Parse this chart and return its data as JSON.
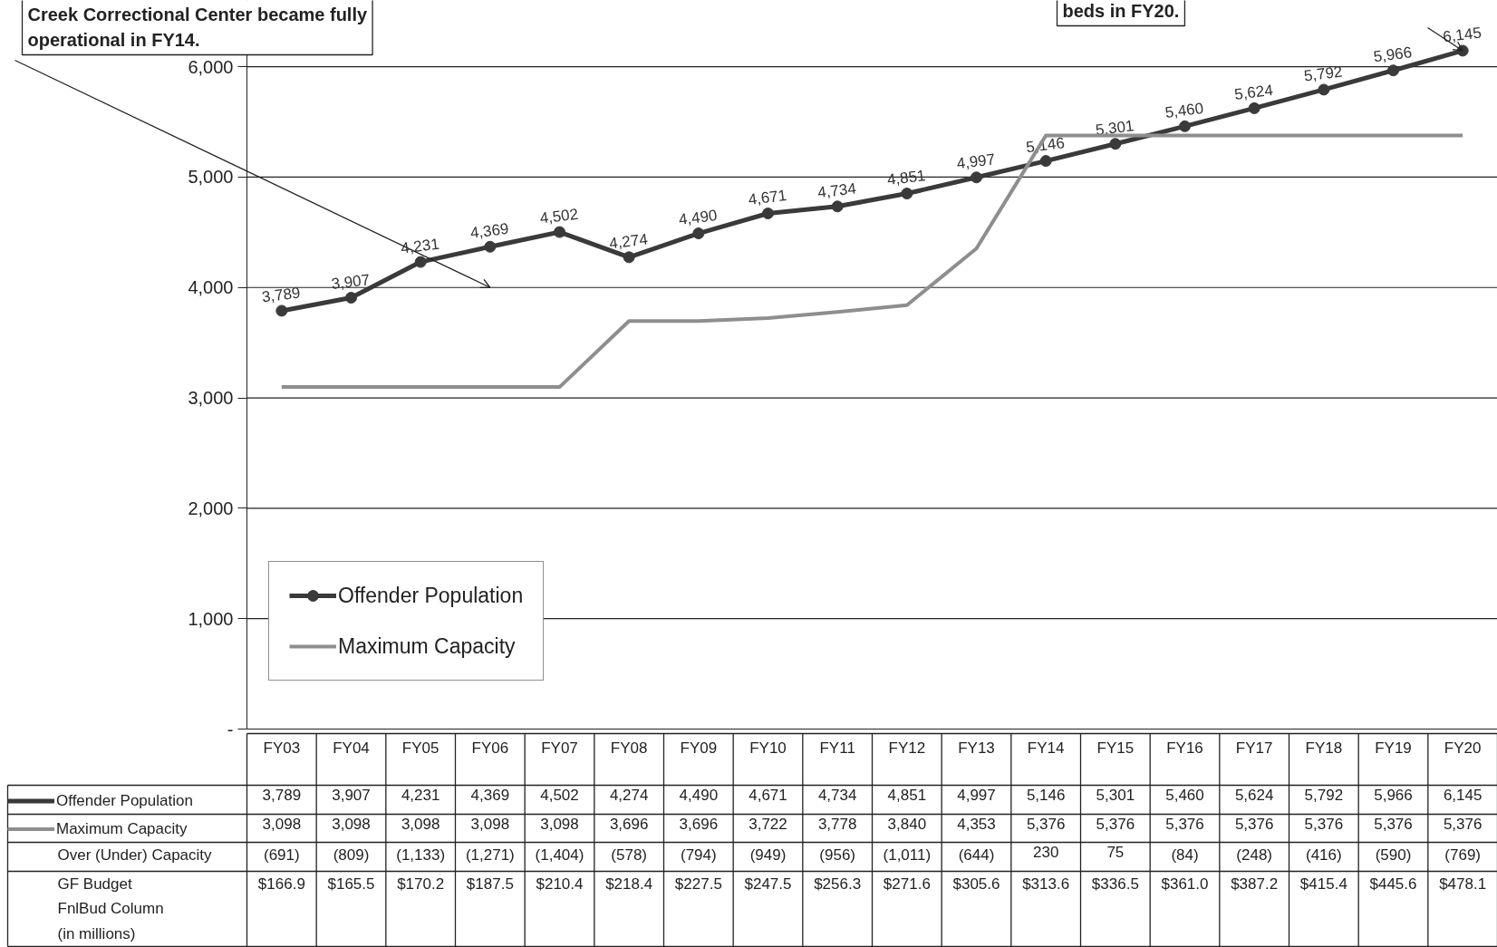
{
  "chart_data": {
    "type": "line",
    "categories": [
      "FY03",
      "FY04",
      "FY05",
      "FY06",
      "FY07",
      "FY08",
      "FY09",
      "FY10",
      "FY11",
      "FY12",
      "FY13",
      "FY14",
      "FY15",
      "FY16",
      "FY17",
      "FY18",
      "FY19",
      "FY20"
    ],
    "series": [
      {
        "name": "Offender Population",
        "color": "#3a3a3a",
        "marker": "circle",
        "values": [
          3789,
          3907,
          4231,
          4369,
          4502,
          4274,
          4490,
          4671,
          4734,
          4851,
          4997,
          5146,
          5301,
          5460,
          5624,
          5792,
          5966,
          6145
        ],
        "value_labels": [
          "3,789",
          "3,907",
          "4,231",
          "4,369",
          "4,502",
          "4,274",
          "4,490",
          "4,671",
          "4,734",
          "4,851",
          "4,997",
          "5,146",
          "5,301",
          "5,460",
          "5,624",
          "5,792",
          "5,966",
          "6,145"
        ]
      },
      {
        "name": "Maximum Capacity",
        "color": "#8e8e8e",
        "marker": "none",
        "values": [
          3098,
          3098,
          3098,
          3098,
          3098,
          3696,
          3696,
          3722,
          3778,
          3840,
          4353,
          5376,
          5376,
          5376,
          5376,
          5376,
          5376,
          5376
        ],
        "value_labels": [
          "3,098",
          "3,098",
          "3,098",
          "3,098",
          "3,098",
          "3,696",
          "3,696",
          "3,722",
          "3,778",
          "3,840",
          "4,353",
          "5,376",
          "5,376",
          "5,376",
          "5,376",
          "5,376",
          "5,376",
          "5,376"
        ]
      }
    ],
    "ylim": [
      0,
      6600
    ],
    "yticks": [
      {
        "value": 0,
        "label": "-"
      },
      {
        "value": 1000,
        "label": "1,000"
      },
      {
        "value": 2000,
        "label": "2,000"
      },
      {
        "value": 3000,
        "label": "3,000"
      },
      {
        "value": 4000,
        "label": "4,000"
      },
      {
        "value": 5000,
        "label": "5,000"
      },
      {
        "value": 6000,
        "label": "6,000"
      }
    ],
    "grid": "y",
    "legend": "bottom left",
    "line_style": "solid",
    "annotations": [
      "Creek Correctional Center became fully\noperational in FY14.",
      "beds in FY20.",
      "Over (Under) Capacity",
      "(691)",
      "(809)",
      "(1,133)",
      "(1,271)",
      "(1,404)",
      "(578)",
      "(794)",
      "(949)",
      "(956)",
      "(1,011)",
      "(644)",
      "230",
      "75",
      "(84)",
      "(248)",
      "(416)",
      "(590)",
      "(769)",
      "GF Budget\nFnlBud Column\n(in millions)",
      "$166.9",
      "$165.5",
      "$170.2",
      "$187.5",
      "$210.4",
      "$218.4",
      "$227.5",
      "$247.5",
      "$256.3",
      "$271.6",
      "$305.6",
      "$313.6",
      "$336.5",
      "$361.0",
      "$387.2",
      "$415.4",
      "$445.6",
      "$478.1"
    ]
  }
}
